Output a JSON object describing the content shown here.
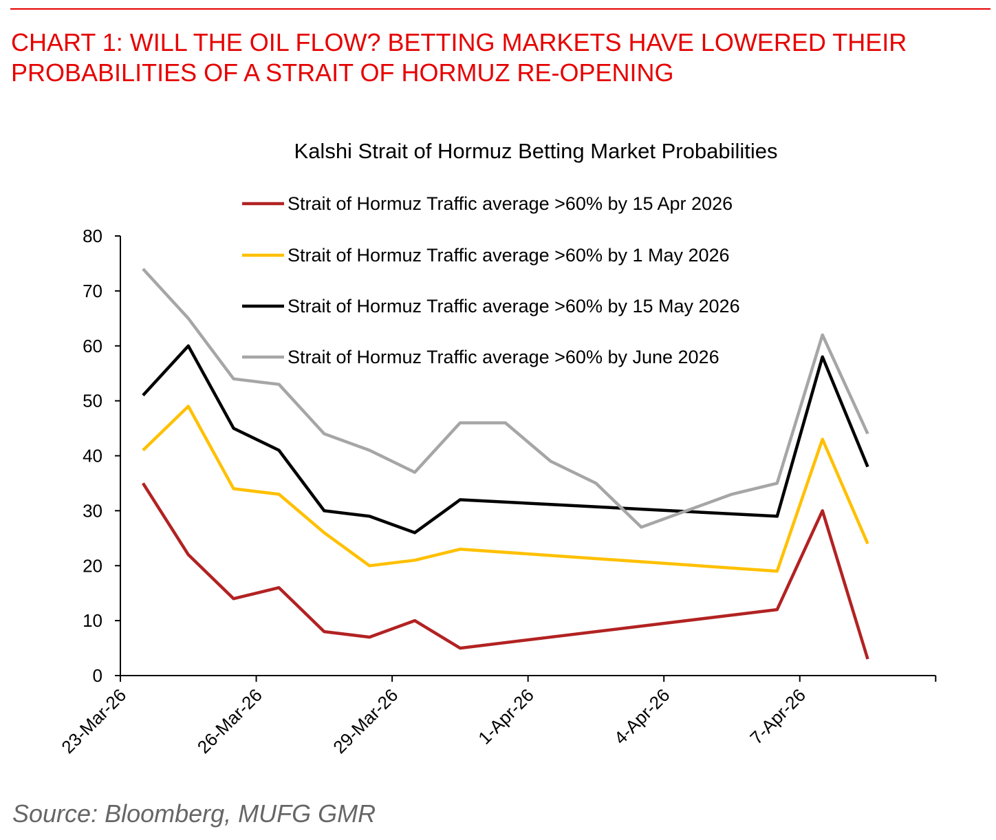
{
  "header": {
    "title": "CHART 1: WILL THE OIL FLOW? BETTING MARKETS HAVE LOWERED THEIR PROBABILITIES OF A STRAIT OF HORMUZ RE-OPENING"
  },
  "footer": {
    "source": "Source: Bloomberg, MUFG GMR"
  },
  "chart_data": {
    "type": "line",
    "title": "Kalshi Strait of Hormuz Betting Market Probabilities",
    "xlabel": "",
    "ylabel": "",
    "ylim": [
      0,
      80
    ],
    "yticks": [
      0,
      10,
      20,
      30,
      40,
      50,
      60,
      70,
      80
    ],
    "xtick_labels": [
      "23-Mar-26",
      "26-Mar-26",
      "29-Mar-26",
      "1-Apr-26",
      "4-Apr-26",
      "7-Apr-26"
    ],
    "x": [
      "23-Mar-26",
      "24-Mar-26",
      "25-Mar-26",
      "26-Mar-26",
      "27-Mar-26",
      "28-Mar-26",
      "29-Mar-26",
      "30-Mar-26",
      "31-Mar-26",
      "1-Apr-26",
      "2-Apr-26",
      "3-Apr-26",
      "4-Apr-26",
      "5-Apr-26",
      "6-Apr-26",
      "7-Apr-26",
      "8-Apr-26"
    ],
    "grid": false,
    "legend_position": "top",
    "series": [
      {
        "name": "Strait of Hormuz Traffic average >60% by 15 Apr 2026",
        "color": "#b22222",
        "values": [
          35,
          22,
          14,
          16,
          8,
          7,
          10,
          5,
          null,
          null,
          null,
          null,
          null,
          null,
          12,
          30,
          3
        ]
      },
      {
        "name": "Strait of Hormuz Traffic average >60% by 1 May 2026",
        "color": "#ffc000",
        "values": [
          41,
          49,
          34,
          33,
          26,
          20,
          21,
          23,
          null,
          null,
          null,
          null,
          null,
          null,
          19,
          43,
          24
        ]
      },
      {
        "name": "Strait of Hormuz Traffic average >60% by 15 May 2026",
        "color": "#000000",
        "values": [
          51,
          60,
          45,
          41,
          30,
          29,
          26,
          32,
          null,
          null,
          null,
          null,
          null,
          null,
          29,
          58,
          38
        ]
      },
      {
        "name": "Strait of Hormuz Traffic average >60% by June 2026",
        "color": "#a6a6a6",
        "values": [
          74,
          65,
          54,
          53,
          44,
          41,
          37,
          46,
          46,
          39,
          35,
          27,
          null,
          33,
          35,
          62,
          44
        ]
      }
    ]
  }
}
